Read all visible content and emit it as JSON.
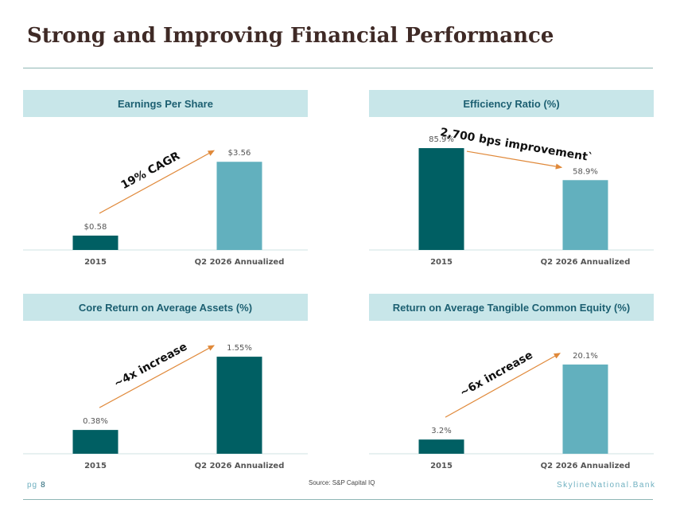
{
  "page": {
    "title": "Strong and Improving Financial Performance",
    "source": "Source: S&P Capital IQ",
    "page_label": "pg",
    "page_number": "8",
    "brand": "SkylineNational.Bank"
  },
  "colors": {
    "dark_teal": "#005f63",
    "light_teal": "#62b0be",
    "arrow": "#e0893a",
    "header_bg": "#c8e6e9"
  },
  "chart_data": [
    {
      "type": "bar",
      "title": "Earnings Per Share",
      "categories": [
        "2015",
        "Q2 2026 Annualized"
      ],
      "values": [
        0.58,
        3.56
      ],
      "labels": [
        "$0.58",
        "$3.56"
      ],
      "bar_colors": [
        "#005f63",
        "#62b0be"
      ],
      "ylim": [
        0,
        4.5
      ],
      "annotation": {
        "text": "19% CAGR",
        "arrow": "up"
      }
    },
    {
      "type": "bar",
      "title": "Efficiency Ratio (%)",
      "categories": [
        "2015",
        "Q2 2026 Annualized"
      ],
      "values": [
        85.9,
        58.9
      ],
      "labels": [
        "85.9%",
        "58.9%"
      ],
      "bar_colors": [
        "#005f63",
        "#62b0be"
      ],
      "ylim": [
        0,
        94
      ],
      "annotation": {
        "text": "2,700 bps improvement`",
        "arrow": "down"
      }
    },
    {
      "type": "bar",
      "title": "Core Return on Average Assets (%)",
      "categories": [
        "2015",
        "Q2 2026 Annualized"
      ],
      "values": [
        0.38,
        1.55
      ],
      "labels": [
        "0.38%",
        "1.55%"
      ],
      "bar_colors": [
        "#005f63",
        "#005f63"
      ],
      "ylim": [
        0,
        1.78
      ],
      "annotation": {
        "text": "~4x increase",
        "arrow": "up"
      }
    },
    {
      "type": "bar",
      "title": "Return on Average Tangible Common Equity (%)",
      "categories": [
        "2015",
        "Q2 2026 Annualized"
      ],
      "values": [
        3.2,
        20.1
      ],
      "labels": [
        "3.2%",
        "20.1%"
      ],
      "bar_colors": [
        "#005f63",
        "#62b0be"
      ],
      "ylim": [
        0,
        25.1
      ],
      "annotation": {
        "text": "~6x increase",
        "arrow": "up"
      }
    }
  ]
}
